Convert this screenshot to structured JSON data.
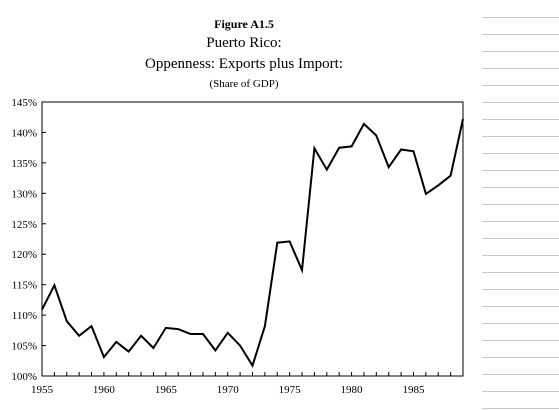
{
  "chart_data": {
    "type": "line",
    "figure_label": "Figure A1.5",
    "title": "Puerto Rico:",
    "subtitle": "Oppenness: Exports plus Import:",
    "note": "(Share of GDP)",
    "xlabel": "",
    "ylabel": "",
    "xlim": [
      1955,
      1989
    ],
    "ylim": [
      100,
      145
    ],
    "x_ticks": [
      1955,
      1960,
      1965,
      1970,
      1975,
      1980,
      1985
    ],
    "y_ticks": [
      100,
      105,
      110,
      115,
      120,
      125,
      130,
      135,
      140,
      145
    ],
    "y_tick_suffix": "%",
    "grid": false,
    "legend": "none",
    "line_color": "#000000",
    "x": [
      1955,
      1956,
      1957,
      1958,
      1959,
      1960,
      1961,
      1962,
      1963,
      1964,
      1965,
      1966,
      1967,
      1968,
      1969,
      1970,
      1971,
      1972,
      1973,
      1974,
      1975,
      1976,
      1977,
      1978,
      1979,
      1980,
      1981,
      1982,
      1983,
      1984,
      1985,
      1986,
      1987,
      1988,
      1989
    ],
    "values": [
      110.9,
      114.9,
      109.0,
      106.6,
      108.2,
      103.1,
      105.6,
      104.0,
      106.6,
      104.6,
      107.9,
      107.7,
      106.9,
      106.9,
      104.2,
      107.1,
      105.0,
      101.7,
      108.2,
      121.9,
      122.1,
      117.4,
      137.4,
      133.9,
      137.5,
      137.7,
      141.4,
      139.5,
      134.3,
      137.2,
      136.9,
      129.9,
      131.3,
      132.9,
      142.2
    ]
  }
}
